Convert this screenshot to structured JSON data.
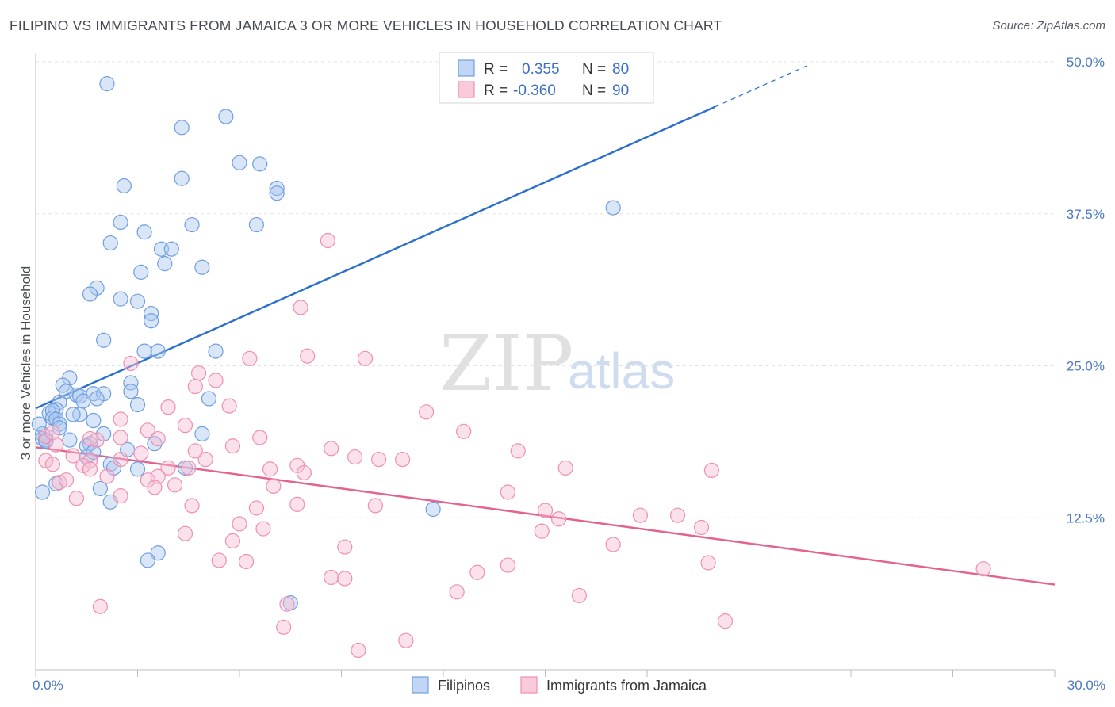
{
  "title": "FILIPINO VS IMMIGRANTS FROM JAMAICA 3 OR MORE VEHICLES IN HOUSEHOLD CORRELATION CHART",
  "source": "Source: ZipAtlas.com",
  "watermark": {
    "zip": "ZIP",
    "atlas": "atlas"
  },
  "chart_data": {
    "type": "scatter",
    "xlabel": "",
    "ylabel": "3 or more Vehicles in Household",
    "xlim": [
      0,
      30
    ],
    "ylim": [
      0,
      50
    ],
    "x_tick_labels": [
      {
        "value": 0,
        "label": "0.0%"
      },
      {
        "value": 30,
        "label": "30.0%"
      }
    ],
    "y_tick_labels": [
      {
        "value": 12.5,
        "label": "12.5%"
      },
      {
        "value": 25,
        "label": "25.0%"
      },
      {
        "value": 37.5,
        "label": "37.5%"
      },
      {
        "value": 50,
        "label": "50.0%"
      }
    ],
    "grid": true,
    "legend_placement": "top-center",
    "stats_legend": [
      {
        "r_label": "R =",
        "r_value": "0.355",
        "n_label": "N =",
        "n_value": "80",
        "color": "#6f9fe0"
      },
      {
        "r_label": "R =",
        "r_value": "-0.360",
        "n_label": "N =",
        "n_value": "90",
        "color": "#ef8fb0"
      }
    ],
    "series": [
      {
        "name": "Filipinos",
        "color": "#6f9fe0",
        "trend": {
          "x": [
            0,
            20
          ],
          "y": [
            21.5,
            46.3
          ],
          "dashed_x": [
            20,
            22.8
          ],
          "dashed_y": [
            46.3,
            49.8
          ],
          "color": "#2a6fcc"
        },
        "points": [
          [
            2.1,
            48.2
          ],
          [
            5.6,
            45.5
          ],
          [
            4.3,
            44.6
          ],
          [
            6.0,
            41.7
          ],
          [
            6.6,
            41.6
          ],
          [
            2.6,
            39.8
          ],
          [
            4.3,
            40.4
          ],
          [
            7.1,
            39.6
          ],
          [
            7.1,
            39.2
          ],
          [
            17.0,
            38.0
          ],
          [
            2.5,
            36.8
          ],
          [
            4.6,
            36.6
          ],
          [
            6.5,
            36.6
          ],
          [
            3.2,
            36.0
          ],
          [
            2.2,
            35.1
          ],
          [
            3.7,
            34.6
          ],
          [
            4.0,
            34.6
          ],
          [
            3.8,
            33.4
          ],
          [
            4.9,
            33.1
          ],
          [
            3.1,
            32.7
          ],
          [
            1.8,
            31.4
          ],
          [
            1.6,
            30.9
          ],
          [
            2.5,
            30.5
          ],
          [
            3.0,
            30.3
          ],
          [
            3.4,
            29.3
          ],
          [
            3.4,
            28.7
          ],
          [
            2.0,
            27.1
          ],
          [
            3.6,
            26.2
          ],
          [
            3.2,
            26.2
          ],
          [
            5.3,
            26.2
          ],
          [
            1.0,
            24.0
          ],
          [
            0.8,
            23.4
          ],
          [
            2.8,
            23.6
          ],
          [
            2.8,
            22.9
          ],
          [
            1.7,
            22.7
          ],
          [
            2.0,
            22.7
          ],
          [
            1.2,
            22.6
          ],
          [
            1.3,
            22.5
          ],
          [
            1.8,
            22.3
          ],
          [
            5.1,
            22.3
          ],
          [
            0.9,
            22.9
          ],
          [
            1.4,
            22.1
          ],
          [
            0.7,
            22.0
          ],
          [
            3.0,
            21.8
          ],
          [
            1.3,
            21.0
          ],
          [
            0.6,
            21.4
          ],
          [
            0.4,
            21.1
          ],
          [
            0.5,
            21.3
          ],
          [
            1.1,
            21.0
          ],
          [
            0.5,
            20.7
          ],
          [
            0.6,
            20.6
          ],
          [
            0.7,
            20.2
          ],
          [
            1.7,
            20.5
          ],
          [
            0.2,
            19.4
          ],
          [
            0.2,
            19.0
          ],
          [
            0.3,
            18.9
          ],
          [
            0.3,
            18.8
          ],
          [
            1.0,
            18.9
          ],
          [
            0.7,
            19.9
          ],
          [
            0.1,
            20.2
          ],
          [
            2.0,
            19.4
          ],
          [
            4.9,
            19.4
          ],
          [
            3.5,
            18.6
          ],
          [
            1.6,
            18.6
          ],
          [
            2.7,
            18.1
          ],
          [
            1.5,
            18.4
          ],
          [
            1.5,
            17.5
          ],
          [
            1.7,
            17.9
          ],
          [
            2.2,
            16.9
          ],
          [
            2.3,
            16.6
          ],
          [
            3.0,
            16.5
          ],
          [
            4.4,
            16.6
          ],
          [
            0.6,
            15.3
          ],
          [
            1.9,
            14.9
          ],
          [
            0.2,
            14.6
          ],
          [
            2.2,
            13.8
          ],
          [
            11.7,
            13.2
          ],
          [
            3.6,
            9.6
          ],
          [
            3.3,
            9.0
          ],
          [
            7.5,
            5.5
          ]
        ]
      },
      {
        "name": "Immigrants from Jamaica",
        "color": "#ef8fb0",
        "trend": {
          "x": [
            0,
            30
          ],
          "y": [
            18.3,
            7.0
          ],
          "color": "#e4628f"
        },
        "points": [
          [
            8.6,
            35.3
          ],
          [
            7.8,
            29.8
          ],
          [
            8.0,
            25.8
          ],
          [
            6.3,
            25.6
          ],
          [
            9.7,
            25.6
          ],
          [
            2.8,
            25.2
          ],
          [
            4.8,
            24.4
          ],
          [
            5.3,
            23.8
          ],
          [
            4.7,
            23.3
          ],
          [
            3.9,
            21.6
          ],
          [
            5.7,
            21.7
          ],
          [
            11.5,
            21.2
          ],
          [
            3.3,
            19.7
          ],
          [
            3.6,
            19.0
          ],
          [
            4.4,
            20.1
          ],
          [
            12.6,
            19.6
          ],
          [
            6.6,
            19.1
          ],
          [
            2.5,
            19.1
          ],
          [
            1.6,
            19.0
          ],
          [
            1.8,
            18.9
          ],
          [
            0.3,
            19.2
          ],
          [
            0.5,
            19.5
          ],
          [
            0.6,
            18.5
          ],
          [
            0.3,
            17.2
          ],
          [
            1.1,
            17.6
          ],
          [
            1.6,
            17.2
          ],
          [
            3.1,
            17.8
          ],
          [
            2.5,
            17.3
          ],
          [
            5.0,
            17.3
          ],
          [
            5.8,
            18.4
          ],
          [
            8.7,
            18.2
          ],
          [
            9.4,
            17.5
          ],
          [
            10.1,
            17.3
          ],
          [
            10.8,
            17.3
          ],
          [
            14.2,
            18.0
          ],
          [
            0.5,
            16.9
          ],
          [
            1.4,
            16.8
          ],
          [
            1.6,
            16.5
          ],
          [
            3.9,
            16.6
          ],
          [
            4.5,
            16.6
          ],
          [
            6.9,
            16.5
          ],
          [
            7.7,
            16.8
          ],
          [
            7.9,
            16.2
          ],
          [
            15.6,
            16.6
          ],
          [
            19.9,
            16.4
          ],
          [
            2.1,
            15.9
          ],
          [
            3.3,
            15.6
          ],
          [
            3.6,
            15.9
          ],
          [
            4.1,
            15.2
          ],
          [
            0.7,
            15.4
          ],
          [
            0.9,
            15.6
          ],
          [
            3.5,
            15.0
          ],
          [
            7.0,
            15.1
          ],
          [
            1.2,
            14.1
          ],
          [
            2.5,
            14.3
          ],
          [
            6.5,
            13.3
          ],
          [
            7.7,
            13.6
          ],
          [
            10.0,
            13.5
          ],
          [
            13.9,
            14.6
          ],
          [
            15.0,
            13.1
          ],
          [
            4.6,
            13.5
          ],
          [
            15.4,
            12.4
          ],
          [
            18.9,
            12.7
          ],
          [
            17.8,
            12.7
          ],
          [
            6.0,
            12.0
          ],
          [
            6.7,
            11.6
          ],
          [
            4.4,
            11.2
          ],
          [
            14.9,
            11.4
          ],
          [
            19.6,
            11.7
          ],
          [
            5.8,
            10.6
          ],
          [
            9.1,
            10.1
          ],
          [
            17.0,
            10.3
          ],
          [
            5.4,
            9.0
          ],
          [
            6.2,
            8.9
          ],
          [
            13.9,
            8.6
          ],
          [
            13.0,
            8.0
          ],
          [
            19.8,
            8.8
          ],
          [
            27.9,
            8.3
          ],
          [
            8.7,
            7.6
          ],
          [
            9.1,
            7.5
          ],
          [
            12.4,
            6.4
          ],
          [
            16.0,
            6.1
          ],
          [
            7.4,
            5.4
          ],
          [
            1.9,
            5.2
          ],
          [
            7.3,
            3.5
          ],
          [
            10.9,
            2.4
          ],
          [
            20.3,
            4.0
          ],
          [
            9.5,
            1.6
          ],
          [
            2.5,
            20.6
          ],
          [
            4.7,
            18.0
          ]
        ]
      }
    ]
  }
}
